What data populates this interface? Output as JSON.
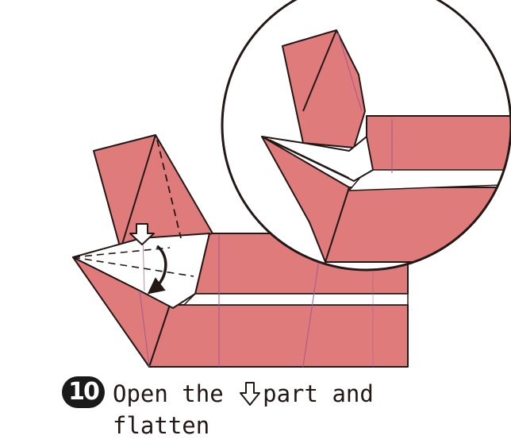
{
  "step": {
    "number": "10"
  },
  "instruction": {
    "text_before": "Open the ",
    "text_after": "part and",
    "line2": "flatten",
    "arrow_icon": "hollow-down-arrow-icon"
  },
  "colors": {
    "paper": "#e07b7c",
    "paper_dark": "#d26b6d",
    "outline": "#231815",
    "crease": "#a05a8c",
    "white": "#ffffff"
  }
}
